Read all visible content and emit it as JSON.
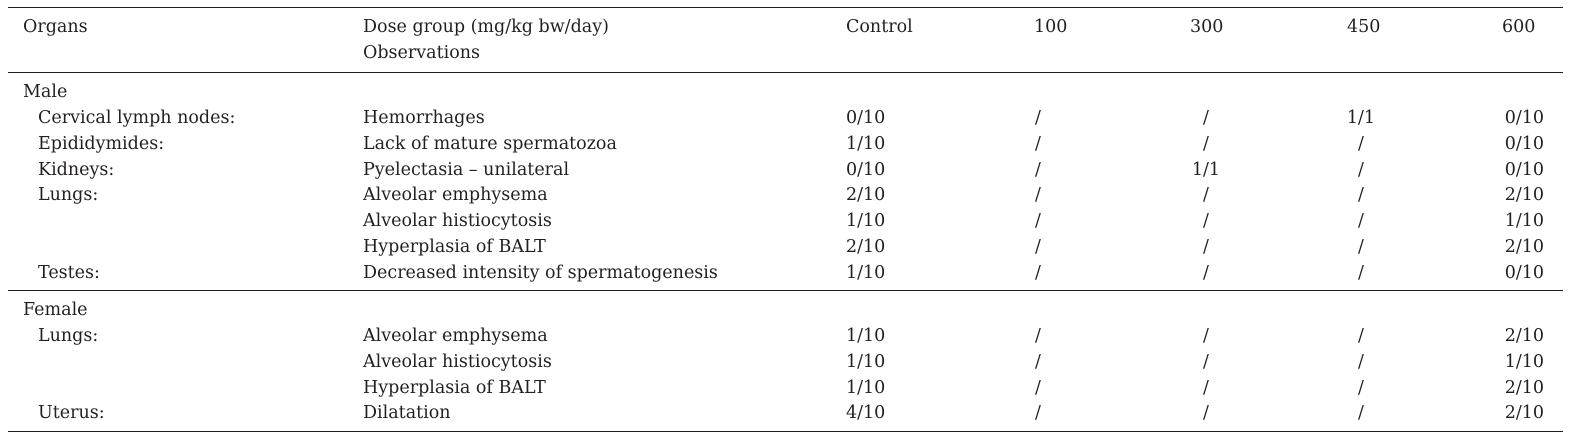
{
  "header": {
    "organs": "Organs",
    "dose_group": "Dose group (mg/kg bw/day)",
    "observations": "Observations",
    "control": "Control",
    "d100": "100",
    "d300": "300",
    "d450": "450",
    "d600": "600"
  },
  "sections": {
    "male": {
      "label": "Male",
      "rows": [
        {
          "organ": "Cervical lymph nodes:",
          "obs": "Hemorrhages",
          "ctrl": "0/10",
          "d100": "/",
          "d300": "/",
          "d450": "1/1",
          "d600": "0/10"
        },
        {
          "organ": "Epididymides:",
          "obs": "Lack of mature spermatozoa",
          "ctrl": "1/10",
          "d100": "/",
          "d300": "/",
          "d450": "/",
          "d600": "0/10"
        },
        {
          "organ": "Kidneys:",
          "obs": "Pyelectasia – unilateral",
          "ctrl": "0/10",
          "d100": "/",
          "d300": "1/1",
          "d450": "/",
          "d600": "0/10"
        },
        {
          "organ": "Lungs:",
          "obs": "Alveolar emphysema",
          "ctrl": "2/10",
          "d100": "/",
          "d300": "/",
          "d450": "/",
          "d600": "2/10"
        },
        {
          "organ": "",
          "obs": "Alveolar histiocytosis",
          "ctrl": "1/10",
          "d100": "/",
          "d300": "/",
          "d450": "/",
          "d600": "1/10"
        },
        {
          "organ": "",
          "obs": "Hyperplasia of BALT",
          "ctrl": "2/10",
          "d100": "/",
          "d300": "/",
          "d450": "/",
          "d600": "2/10"
        },
        {
          "organ": "Testes:",
          "obs": "Decreased intensity of spermatogenesis",
          "ctrl": "1/10",
          "d100": "/",
          "d300": "/",
          "d450": "/",
          "d600": "0/10"
        }
      ]
    },
    "female": {
      "label": "Female",
      "rows": [
        {
          "organ": "Lungs:",
          "obs": "Alveolar emphysema",
          "ctrl": "1/10",
          "d100": "/",
          "d300": "/",
          "d450": "/",
          "d600": "2/10"
        },
        {
          "organ": "",
          "obs": "Alveolar histiocytosis",
          "ctrl": "1/10",
          "d100": "/",
          "d300": "/",
          "d450": "/",
          "d600": "1/10"
        },
        {
          "organ": "",
          "obs": "Hyperplasia of BALT",
          "ctrl": "1/10",
          "d100": "/",
          "d300": "/",
          "d450": "/",
          "d600": "2/10"
        },
        {
          "organ": "Uterus:",
          "obs": "Dilatation",
          "ctrl": "4/10",
          "d100": "/",
          "d300": "/",
          "d450": "/",
          "d600": "2/10"
        }
      ]
    }
  }
}
